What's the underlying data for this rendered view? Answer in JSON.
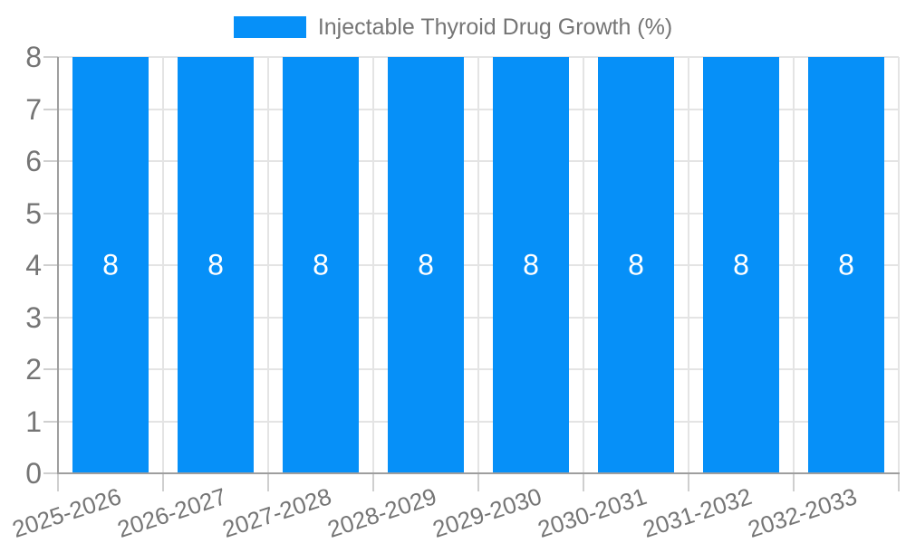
{
  "chart_data": {
    "type": "bar",
    "title": "Injectable Thyroid Drug Growth (%)",
    "legend": [
      "Injectable Thyroid Drug Growth (%)"
    ],
    "legend_position": "top-center",
    "categories": [
      "2025-2026",
      "2026-2027",
      "2027-2028",
      "2028-2029",
      "2029-2030",
      "2030-2031",
      "2031-2032",
      "2032-2033"
    ],
    "series": [
      {
        "name": "Injectable Thyroid Drug Growth (%)",
        "values": [
          8,
          8,
          8,
          8,
          8,
          8,
          8,
          8
        ]
      }
    ],
    "values": [
      8,
      8,
      8,
      8,
      8,
      8,
      8,
      8
    ],
    "bar_value_labels": [
      "8",
      "8",
      "8",
      "8",
      "8",
      "8",
      "8",
      "8"
    ],
    "xlabel": "",
    "ylabel": "",
    "ylim": [
      0,
      8
    ],
    "yticks": [
      0,
      1,
      2,
      3,
      4,
      5,
      6,
      7,
      8
    ],
    "grid": true,
    "x_label_rotation_deg": -18,
    "colors": {
      "bar": "#0690f8",
      "axis": "#9e9e9e",
      "gridline": "#e4e4e4",
      "tick": "#cfcfcf",
      "text": "#757575",
      "bar_label": "#ffffff",
      "background": "#ffffff"
    }
  }
}
